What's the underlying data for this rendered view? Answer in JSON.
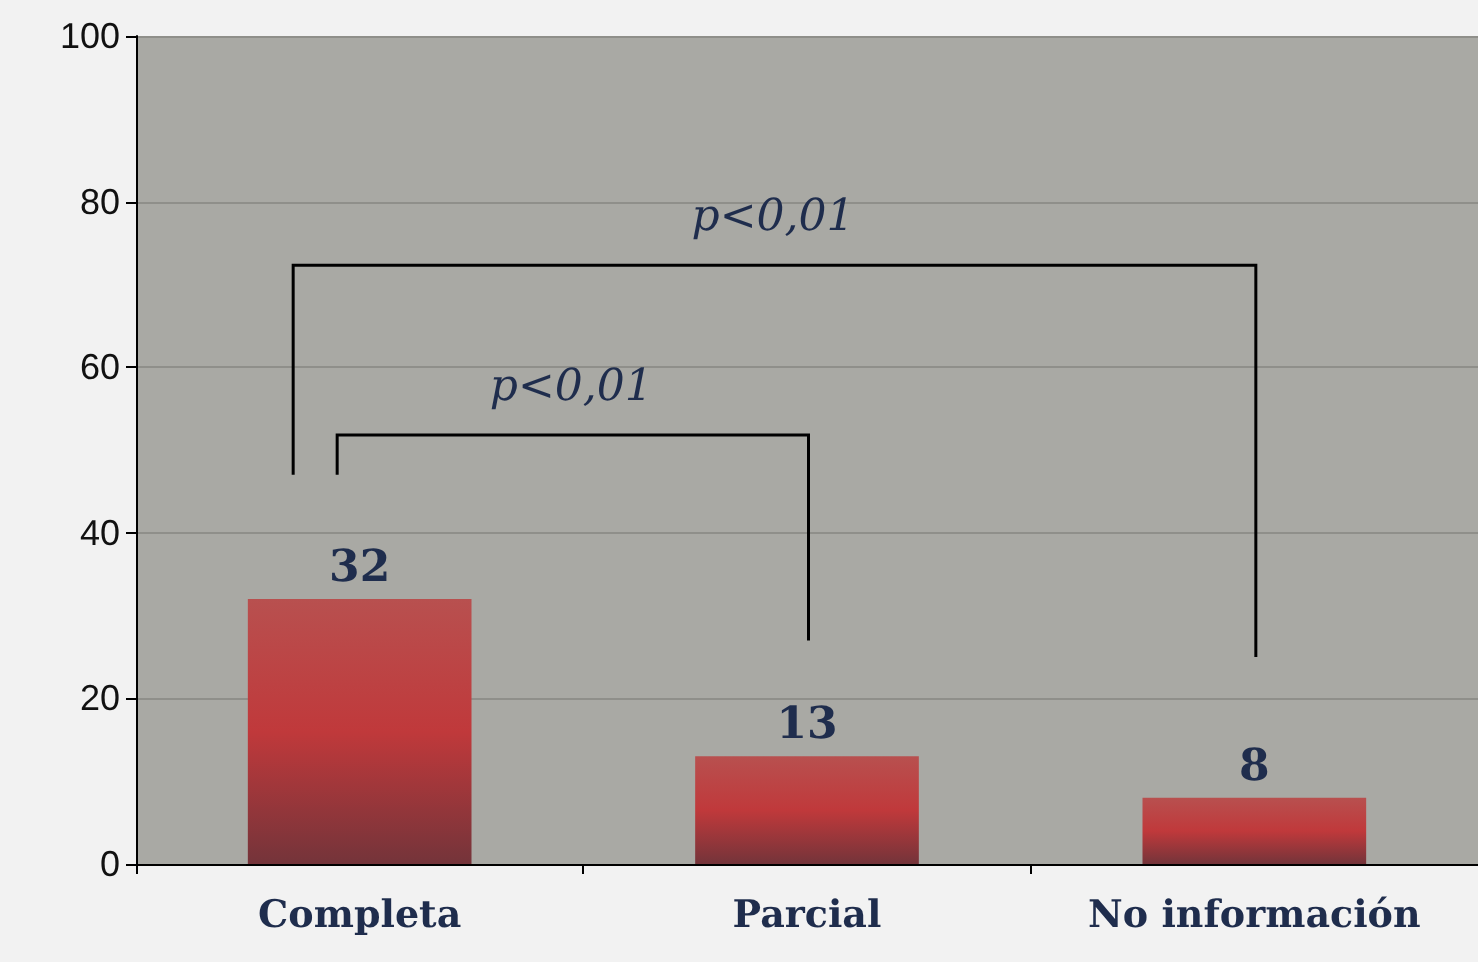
{
  "chart_data": {
    "type": "bar",
    "categories": [
      "Completa",
      "Parcial",
      "No información"
    ],
    "values": [
      32,
      13,
      8
    ],
    "color": "#c0393b",
    "data_labels": true,
    "ylim": [
      0,
      100
    ],
    "yticks": [
      0,
      20,
      40,
      60,
      80,
      100
    ],
    "grid": "y",
    "annotations": [
      "p<0,01",
      "p<0,01"
    ]
  }
}
